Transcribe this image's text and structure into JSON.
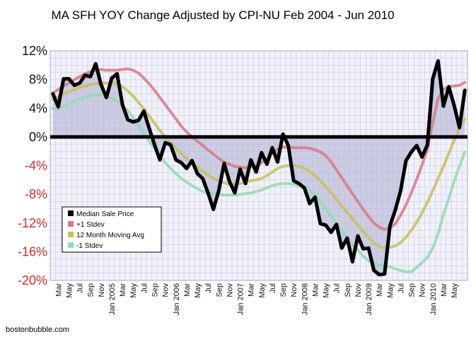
{
  "chart_data": {
    "type": "line",
    "title": "MA SFH YOY Change Adjusted by CPI-NU Feb 2004 - Jun 2010",
    "ylim": [
      -20,
      12
    ],
    "y_ticks": [
      12,
      8,
      4,
      0,
      -4,
      -8,
      -12,
      -16,
      -20
    ],
    "y_tick_labels": [
      "12%",
      "8%",
      "4%",
      "0%",
      "-4%",
      "-8%",
      "-12%",
      "-16%",
      "-20%"
    ],
    "grid": true,
    "legend_position": "bottom-left",
    "x_labels": [
      {
        "i": 1,
        "label": "Mar"
      },
      {
        "i": 3,
        "label": "May"
      },
      {
        "i": 5,
        "label": "Jul"
      },
      {
        "i": 7,
        "label": "Sep"
      },
      {
        "i": 9,
        "label": "Nov"
      },
      {
        "i": 11,
        "label": "Jan 2005"
      },
      {
        "i": 13,
        "label": "Mar"
      },
      {
        "i": 15,
        "label": "May"
      },
      {
        "i": 17,
        "label": "Jul"
      },
      {
        "i": 19,
        "label": "Sep"
      },
      {
        "i": 21,
        "label": "Nov"
      },
      {
        "i": 23,
        "label": "Jan 2006"
      },
      {
        "i": 25,
        "label": "Mar"
      },
      {
        "i": 27,
        "label": "May"
      },
      {
        "i": 29,
        "label": "Jul"
      },
      {
        "i": 31,
        "label": "Sep"
      },
      {
        "i": 33,
        "label": "Nov"
      },
      {
        "i": 35,
        "label": "Jan 2007"
      },
      {
        "i": 37,
        "label": "Mar"
      },
      {
        "i": 39,
        "label": "May"
      },
      {
        "i": 41,
        "label": "Jul"
      },
      {
        "i": 43,
        "label": "Sep"
      },
      {
        "i": 45,
        "label": "Nov"
      },
      {
        "i": 47,
        "label": "Jan 2008"
      },
      {
        "i": 49,
        "label": "Mar"
      },
      {
        "i": 51,
        "label": "May"
      },
      {
        "i": 53,
        "label": "Jul"
      },
      {
        "i": 55,
        "label": "Sep"
      },
      {
        "i": 57,
        "label": "Nov"
      },
      {
        "i": 59,
        "label": "Jan 2009"
      },
      {
        "i": 61,
        "label": "Mar"
      },
      {
        "i": 63,
        "label": "May"
      },
      {
        "i": 65,
        "label": "Jul"
      },
      {
        "i": 67,
        "label": "Sep"
      },
      {
        "i": 69,
        "label": "Nov"
      },
      {
        "i": 71,
        "label": "Jan 2010"
      },
      {
        "i": 73,
        "label": "Mar"
      },
      {
        "i": 75,
        "label": "May"
      }
    ],
    "series": [
      {
        "name": "Median Sale Price",
        "color": "#000000",
        "values": [
          6,
          4.2,
          8.1,
          8.1,
          7.2,
          7.5,
          8.6,
          8.4,
          10.2,
          7.3,
          5.5,
          8.2,
          8.8,
          4.5,
          2.4,
          2.1,
          2.3,
          3.6,
          1.2,
          -1.1,
          -3.2,
          -0.8,
          -1.1,
          -3.2,
          -3.6,
          -4.4,
          -3.3,
          -5.1,
          -5.8,
          -7.8,
          -10.1,
          -7.5,
          -3.7,
          -6.2,
          -7.8,
          -4.5,
          -6.5,
          -3.2,
          -4.9,
          -2.2,
          -3.8,
          -1.5,
          -3.5,
          0.4,
          -1.2,
          -6.1,
          -6.5,
          -7.1,
          -9.3,
          -8.4,
          -12.1,
          -12.3,
          -13.3,
          -12.2,
          -15.5,
          -14.1,
          -17.4,
          -13.8,
          -15.6,
          -15.5,
          -18.6,
          -19.2,
          -19.1,
          -12.4,
          -10.2,
          -7.5,
          -3.3,
          -2.1,
          -1.2,
          -2.8,
          -1.1,
          8.1,
          10.6,
          4.3,
          7.0,
          4.4,
          1.3,
          6.5
        ]
      },
      {
        "name": "+1 Stdev",
        "color": "#d67a84",
        "values": [
          6.1,
          6.6,
          7.1,
          7.5,
          8.0,
          8.4,
          8.8,
          9.1,
          9.3,
          9.4,
          9.3,
          9.3,
          9.3,
          9.4,
          9.5,
          9.3,
          8.9,
          8.2,
          7.4,
          6.5,
          5.5,
          4.5,
          3.5,
          2.5,
          1.5,
          0.7,
          0.0,
          -0.6,
          -1.2,
          -1.8,
          -2.4,
          -3.0,
          -3.5,
          -3.8,
          -4.1,
          -4.2,
          -4.3,
          -4.2,
          -4.0,
          -3.6,
          -3.1,
          -2.3,
          -1.7,
          -1.4,
          -1.4,
          -1.5,
          -1.5,
          -1.5,
          -1.6,
          -1.8,
          -2.1,
          -2.6,
          -3.5,
          -4.6,
          -5.7,
          -6.8,
          -7.9,
          -9.0,
          -10.1,
          -11.1,
          -12.0,
          -12.6,
          -12.9,
          -12.7,
          -12.1,
          -10.9,
          -9.5,
          -7.8,
          -5.9,
          -3.9,
          -1.8,
          2.0,
          5.3,
          6.6,
          7.0,
          7.1,
          7.2,
          7.6
        ]
      },
      {
        "name": "12 Month Moving Avg",
        "color": "#c8c057",
        "values": [
          5.2,
          5.6,
          6.0,
          6.3,
          6.6,
          6.9,
          7.1,
          7.3,
          7.4,
          7.5,
          7.5,
          7.5,
          7.4,
          7.0,
          6.4,
          5.7,
          4.8,
          3.9,
          2.9,
          1.9,
          0.9,
          0.0,
          -0.8,
          -1.6,
          -2.3,
          -3.0,
          -3.6,
          -4.2,
          -4.8,
          -5.3,
          -5.8,
          -6.1,
          -6.4,
          -6.6,
          -6.6,
          -6.5,
          -6.3,
          -6.1,
          -6.0,
          -5.8,
          -5.4,
          -4.9,
          -4.4,
          -4.1,
          -4.0,
          -4.0,
          -4.1,
          -4.4,
          -4.8,
          -5.4,
          -6.1,
          -6.9,
          -7.8,
          -8.7,
          -9.6,
          -10.5,
          -11.4,
          -12.3,
          -13.2,
          -14.0,
          -14.8,
          -15.3,
          -15.5,
          -15.4,
          -15.2,
          -14.7,
          -14.0,
          -13.0,
          -11.9,
          -10.6,
          -9.1,
          -7.5,
          -5.8,
          -4.1,
          -2.3,
          -0.5,
          1.2,
          2.5
        ]
      },
      {
        "name": "-1 Stdev",
        "color": "#8fdcb0",
        "values": [
          4.0,
          3.8,
          4.3,
          4.6,
          5.0,
          5.3,
          5.5,
          5.7,
          5.9,
          5.9,
          5.7,
          5.4,
          5.0,
          4.4,
          3.6,
          2.7,
          1.6,
          0.5,
          -0.6,
          -1.6,
          -2.7,
          -3.6,
          -4.4,
          -5.1,
          -5.8,
          -6.3,
          -6.8,
          -7.2,
          -7.6,
          -7.8,
          -7.9,
          -8.0,
          -8.1,
          -8.1,
          -8.1,
          -8.0,
          -7.9,
          -7.8,
          -7.6,
          -7.4,
          -7.1,
          -6.8,
          -6.6,
          -6.5,
          -6.5,
          -6.6,
          -6.8,
          -7.1,
          -7.5,
          -8.1,
          -9.0,
          -10.0,
          -11.0,
          -12.0,
          -13.0,
          -14.0,
          -15.0,
          -15.8,
          -16.6,
          -17.2,
          -17.6,
          -17.9,
          -18.0,
          -18.1,
          -18.4,
          -18.6,
          -18.8,
          -18.8,
          -18.2,
          -17.5,
          -16.8,
          -15.5,
          -13.5,
          -10.8,
          -8.6,
          -6.2,
          -4.1,
          -2.1
        ]
      }
    ]
  },
  "footer": {
    "source": "bostonbubble.com"
  },
  "colors": {
    "plot_bg": "#f1f1fb",
    "grid": "#c8c8de",
    "fill": "#b4b4d6",
    "zero_line": "#000000",
    "negative_tick": "#d42a2a"
  }
}
